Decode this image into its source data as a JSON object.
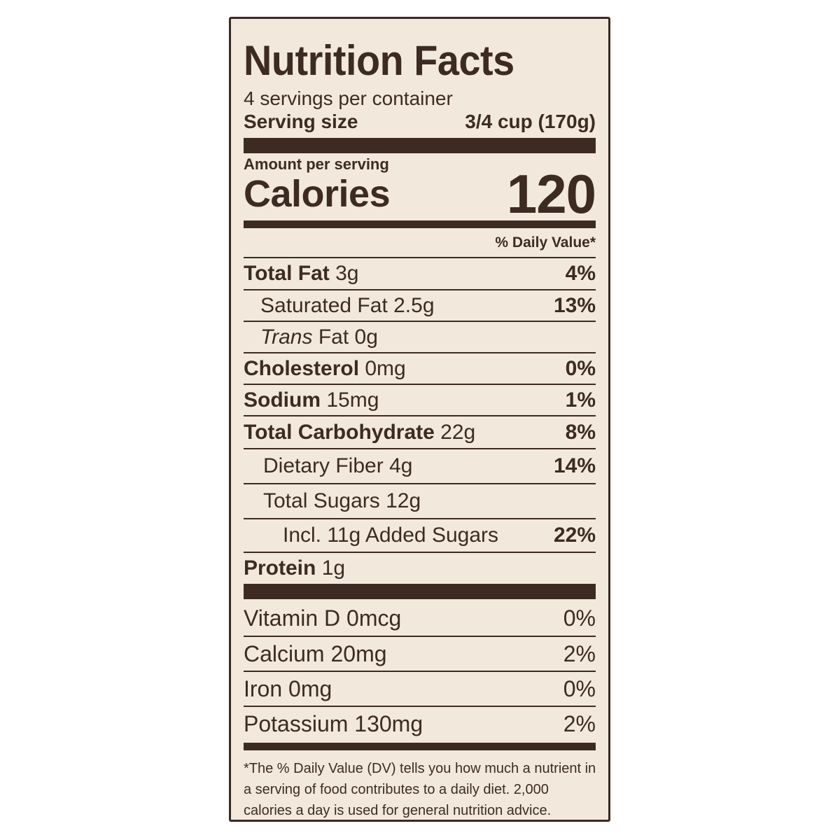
{
  "label": {
    "title": "Nutrition Facts",
    "servings_per_container": "4 servings per container",
    "serving_size_label": "Serving size",
    "serving_size_value": "3/4 cup (170g)",
    "amount_per_serving": "Amount per serving",
    "calories_label": "Calories",
    "calories_value": "120",
    "daily_value_header": "% Daily Value*"
  },
  "nutrients": {
    "total_fat": {
      "name": "Total Fat",
      "amount": "3g",
      "dv": "4%"
    },
    "saturated_fat": {
      "name": "Saturated Fat",
      "amount": "2.5g",
      "dv": "13%"
    },
    "trans_fat": {
      "name_italic": "Trans",
      "name": "Fat",
      "amount": "0g"
    },
    "cholesterol": {
      "name": "Cholesterol",
      "amount": "0mg",
      "dv": "0%"
    },
    "sodium": {
      "name": "Sodium",
      "amount": "15mg",
      "dv": "1%"
    },
    "total_carbohydrate": {
      "name": "Total Carbohydrate",
      "amount": "22g",
      "dv": "8%"
    },
    "dietary_fiber": {
      "name": "Dietary Fiber",
      "amount": "4g",
      "dv": "14%"
    },
    "total_sugars": {
      "name": "Total Sugars",
      "amount": "12g"
    },
    "added_sugars": {
      "name": "Incl. 11g Added Sugars",
      "dv": "22%"
    },
    "protein": {
      "name": "Protein",
      "amount": "1g"
    }
  },
  "vitamins": {
    "vitamin_d": {
      "name": "Vitamin D",
      "amount": "0mcg",
      "dv": "0%"
    },
    "calcium": {
      "name": "Calcium",
      "amount": "20mg",
      "dv": "2%"
    },
    "iron": {
      "name": "Iron",
      "amount": "0mg",
      "dv": "0%"
    },
    "potassium": {
      "name": "Potassium",
      "amount": "130mg",
      "dv": "2%"
    }
  },
  "footnote": {
    "line1": "*The % Daily Value (DV) tells you how much a nutrient in",
    "line2": "a serving of food contributes to a daily diet. 2,000",
    "line3": "calories a day is used for general nutrition advice."
  },
  "colors": {
    "ink": "#3d2b23",
    "background": "#f2e9dc"
  }
}
